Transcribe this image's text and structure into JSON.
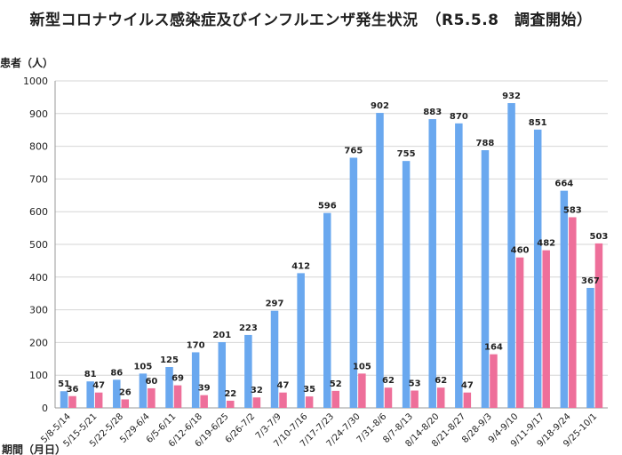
{
  "chart_data": {
    "type": "bar",
    "title": "新型コロナウイルス感染症及びインフルエンザ発生状況　（R5.5.8　調査開始）",
    "ylabel": "患者（人）",
    "xlabel": "期間（月日）",
    "ylim": [
      0,
      1000
    ],
    "yticks": [
      0,
      100,
      200,
      300,
      400,
      500,
      600,
      700,
      800,
      900,
      1000
    ],
    "grid": true,
    "categories": [
      "5/8-5/14",
      "5/15-5/21",
      "5/22-5/28",
      "5/29-6/4",
      "6/5-6/11",
      "6/12-6/18",
      "6/19-6/25",
      "6/26-7/2",
      "7/3-7/9",
      "7/10-7/16",
      "7/17-7/23",
      "7/24-7/30",
      "7/31-8/6",
      "8/7-8/13",
      "8/14-8/20",
      "8/21-8/27",
      "8/28-9/3",
      "9/4-9/10",
      "9/11-9/17",
      "9/18-9/24",
      "9/25-10/1"
    ],
    "series": [
      {
        "name": "新型コロナウイルス感染症",
        "color": "#6aa8ef",
        "values": [
          51,
          81,
          86,
          105,
          125,
          170,
          201,
          223,
          297,
          412,
          596,
          765,
          902,
          755,
          883,
          870,
          788,
          932,
          851,
          664,
          367
        ]
      },
      {
        "name": "インフルエンザ",
        "color": "#ee6f9a",
        "values": [
          36,
          47,
          26,
          60,
          69,
          39,
          22,
          32,
          47,
          35,
          52,
          105,
          62,
          53,
          62,
          47,
          164,
          460,
          482,
          583,
          503
        ]
      }
    ]
  }
}
